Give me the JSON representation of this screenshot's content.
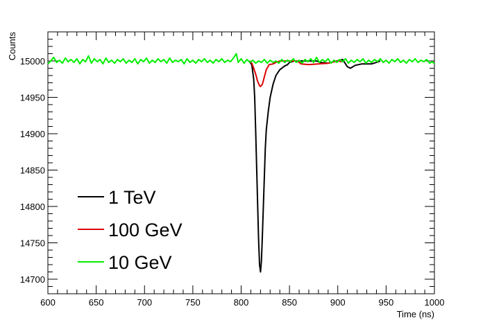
{
  "chart_data": {
    "type": "line",
    "title": "",
    "xlabel": "Time (ns)",
    "ylabel": "Counts",
    "xlim": [
      600,
      1000
    ],
    "ylim": [
      14680,
      15040
    ],
    "x_ticks": [
      600,
      650,
      700,
      750,
      800,
      850,
      900,
      950,
      1000
    ],
    "y_ticks": [
      14700,
      14750,
      14800,
      14850,
      14900,
      14950,
      15000
    ],
    "grid": false,
    "legend_position": "bottom-left",
    "baseline": 15000,
    "series": [
      {
        "name": "1 TeV",
        "color": "#000000",
        "points": [
          [
            808,
            15000
          ],
          [
            811,
            14995
          ],
          [
            813,
            14975
          ],
          [
            814,
            14950
          ],
          [
            815,
            14905
          ],
          [
            816,
            14855
          ],
          [
            817,
            14805
          ],
          [
            818,
            14755
          ],
          [
            819,
            14720
          ],
          [
            820,
            14710
          ],
          [
            821,
            14725
          ],
          [
            822,
            14760
          ],
          [
            823,
            14800
          ],
          [
            824,
            14840
          ],
          [
            825,
            14880
          ],
          [
            826,
            14905
          ],
          [
            828,
            14930
          ],
          [
            830,
            14950
          ],
          [
            833,
            14968
          ],
          [
            836,
            14980
          ],
          [
            840,
            14988
          ],
          [
            845,
            14993
          ],
          [
            848,
            14995
          ],
          [
            850,
            14998
          ],
          [
            855,
            15000
          ],
          [
            878,
            15000
          ],
          [
            882,
            14998
          ],
          [
            890,
            14997
          ],
          [
            905,
            15002
          ],
          [
            908,
            14996
          ],
          [
            910,
            14992
          ],
          [
            913,
            14990
          ],
          [
            918,
            14994
          ],
          [
            925,
            14996
          ],
          [
            935,
            14996
          ],
          [
            940,
            14998
          ],
          [
            944,
            15000
          ]
        ]
      },
      {
        "name": "100 GeV",
        "color": "#dd0000",
        "points": [
          [
            809,
            15000
          ],
          [
            811,
            14997
          ],
          [
            813,
            14990
          ],
          [
            815,
            14982
          ],
          [
            817,
            14972
          ],
          [
            819,
            14966
          ],
          [
            820,
            14965
          ],
          [
            822,
            14968
          ],
          [
            824,
            14978
          ],
          [
            826,
            14988
          ],
          [
            829,
            14995
          ],
          [
            833,
            14996
          ],
          [
            836,
            14998
          ],
          [
            840,
            15000
          ],
          [
            858,
            15000
          ],
          [
            862,
            14996
          ],
          [
            870,
            14995
          ],
          [
            880,
            14996
          ],
          [
            890,
            14997
          ],
          [
            900,
            15000
          ],
          [
            905,
            14999
          ]
        ]
      },
      {
        "name": "10 GeV",
        "color": "#00ee00",
        "points": [
          [
            600,
            14996
          ],
          [
            603,
            15000
          ],
          [
            606,
            15005
          ],
          [
            609,
            14998
          ],
          [
            612,
            15001
          ],
          [
            615,
            14997
          ],
          [
            618,
            15004
          ],
          [
            621,
            14999
          ],
          [
            624,
            15002
          ],
          [
            627,
            14998
          ],
          [
            630,
            15003
          ],
          [
            633,
            14996
          ],
          [
            636,
            15002
          ],
          [
            639,
            14999
          ],
          [
            642,
            15007
          ],
          [
            645,
            14997
          ],
          [
            648,
            15003
          ],
          [
            651,
            14999
          ],
          [
            654,
            15002
          ],
          [
            657,
            14996
          ],
          [
            660,
            15004
          ],
          [
            663,
            14998
          ],
          [
            666,
            15001
          ],
          [
            669,
            14997
          ],
          [
            672,
            15002
          ],
          [
            675,
            14999
          ],
          [
            678,
            15003
          ],
          [
            681,
            14997
          ],
          [
            684,
            15001
          ],
          [
            687,
            14998
          ],
          [
            690,
            15003
          ],
          [
            693,
            14996
          ],
          [
            696,
            15002
          ],
          [
            699,
            14999
          ],
          [
            702,
            15004
          ],
          [
            705,
            14997
          ],
          [
            708,
            15001
          ],
          [
            711,
            14998
          ],
          [
            714,
            15003
          ],
          [
            717,
            14999
          ],
          [
            720,
            15002
          ],
          [
            723,
            14997
          ],
          [
            726,
            15004
          ],
          [
            729,
            14998
          ],
          [
            732,
            15001
          ],
          [
            735,
            14999
          ],
          [
            738,
            15002
          ],
          [
            741,
            14996
          ],
          [
            744,
            15003
          ],
          [
            747,
            14998
          ],
          [
            750,
            15001
          ],
          [
            753,
            14997
          ],
          [
            756,
            15002
          ],
          [
            759,
            14999
          ],
          [
            762,
            15003
          ],
          [
            765,
            14998
          ],
          [
            768,
            15001
          ],
          [
            771,
            14997
          ],
          [
            774,
            15002
          ],
          [
            777,
            14999
          ],
          [
            780,
            15003
          ],
          [
            783,
            14998
          ],
          [
            786,
            15001
          ],
          [
            789,
            14999
          ],
          [
            792,
            15004
          ],
          [
            795,
            15010
          ],
          [
            797,
            14998
          ],
          [
            800,
            15003
          ],
          [
            803,
            14997
          ],
          [
            806,
            15002
          ],
          [
            809,
            14998
          ],
          [
            812,
            15001
          ],
          [
            815,
            14997
          ],
          [
            818,
            15000
          ],
          [
            821,
            14998
          ],
          [
            824,
            15002
          ],
          [
            827,
            14997
          ],
          [
            830,
            15001
          ],
          [
            833,
            14998
          ],
          [
            836,
            15000
          ],
          [
            839,
            14997
          ],
          [
            842,
            15002
          ],
          [
            845,
            14998
          ],
          [
            848,
            15001
          ],
          [
            851,
            14999
          ],
          [
            854,
            15003
          ],
          [
            857,
            14998
          ],
          [
            860,
            15001
          ],
          [
            863,
            14997
          ],
          [
            866,
            15002
          ],
          [
            869,
            14999
          ],
          [
            872,
            15003
          ],
          [
            875,
            14998
          ],
          [
            878,
            15005
          ],
          [
            881,
            14998
          ],
          [
            884,
            15002
          ],
          [
            887,
            14999
          ],
          [
            890,
            15003
          ],
          [
            893,
            14997
          ],
          [
            896,
            15001
          ],
          [
            899,
            14998
          ],
          [
            902,
            15002
          ],
          [
            905,
            14999
          ],
          [
            908,
            15003
          ],
          [
            911,
            14997
          ],
          [
            914,
            15001
          ],
          [
            917,
            14998
          ],
          [
            920,
            15002
          ],
          [
            923,
            14999
          ],
          [
            926,
            15003
          ],
          [
            929,
            14997
          ],
          [
            932,
            15001
          ],
          [
            935,
            14998
          ],
          [
            938,
            15002
          ],
          [
            941,
            14999
          ],
          [
            944,
            15003
          ],
          [
            947,
            14998
          ],
          [
            950,
            15001
          ],
          [
            953,
            14997
          ],
          [
            956,
            15002
          ],
          [
            959,
            14999
          ],
          [
            962,
            15003
          ],
          [
            965,
            14998
          ],
          [
            968,
            15001
          ],
          [
            971,
            14997
          ],
          [
            974,
            15002
          ],
          [
            977,
            14999
          ],
          [
            980,
            15003
          ],
          [
            983,
            14998
          ],
          [
            986,
            15001
          ],
          [
            989,
            14999
          ],
          [
            992,
            15002
          ],
          [
            995,
            14997
          ],
          [
            998,
            14999
          ],
          [
            1000,
            14996
          ]
        ]
      }
    ]
  }
}
